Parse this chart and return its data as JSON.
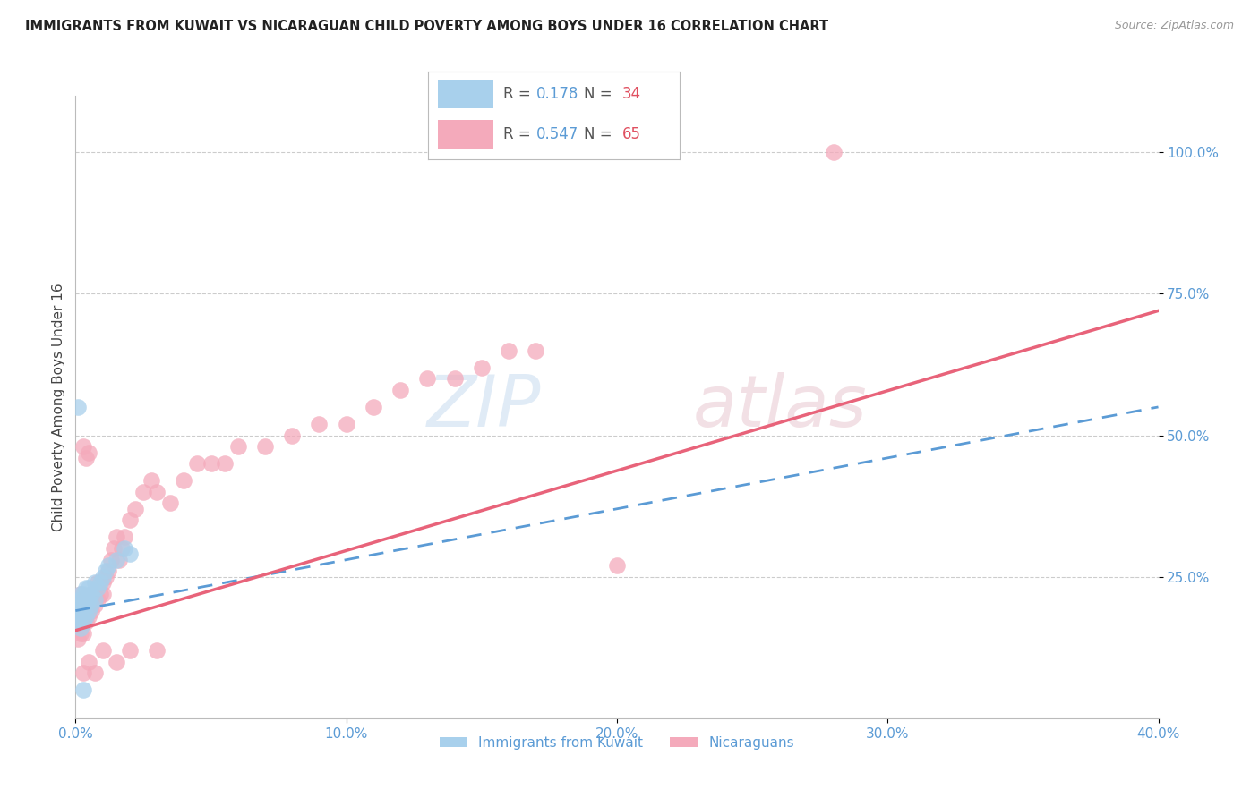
{
  "title": "IMMIGRANTS FROM KUWAIT VS NICARAGUAN CHILD POVERTY AMONG BOYS UNDER 16 CORRELATION CHART",
  "source": "Source: ZipAtlas.com",
  "ylabel": "Child Poverty Among Boys Under 16",
  "xlim": [
    0.0,
    0.4
  ],
  "ylim": [
    0.0,
    1.1
  ],
  "yticks": [
    0.25,
    0.5,
    0.75,
    1.0
  ],
  "ytick_labels": [
    "25.0%",
    "50.0%",
    "75.0%",
    "100.0%"
  ],
  "xticks": [
    0.0,
    0.1,
    0.2,
    0.3,
    0.4
  ],
  "xtick_labels": [
    "0.0%",
    "10.0%",
    "20.0%",
    "30.0%",
    "40.0%"
  ],
  "r1": 0.178,
  "n1": 34,
  "r2": 0.547,
  "n2": 65,
  "color1": "#A8D0EC",
  "color2": "#F4AABB",
  "trendline1_color": "#5B9BD5",
  "trendline2_color": "#E8637A",
  "axis_label_color": "#5B9BD5",
  "watermark_zip": "ZIP",
  "watermark_atlas": "atlas",
  "background_color": "#FFFFFF",
  "legend_label1": "Immigrants from Kuwait",
  "legend_label2": "Nicaraguans",
  "kuwait_x": [
    0.001,
    0.001,
    0.001,
    0.001,
    0.002,
    0.002,
    0.002,
    0.002,
    0.002,
    0.003,
    0.003,
    0.003,
    0.003,
    0.004,
    0.004,
    0.004,
    0.004,
    0.005,
    0.005,
    0.005,
    0.006,
    0.006,
    0.007,
    0.007,
    0.008,
    0.009,
    0.01,
    0.011,
    0.012,
    0.015,
    0.018,
    0.02,
    0.001,
    0.003
  ],
  "kuwait_y": [
    0.17,
    0.18,
    0.19,
    0.2,
    0.16,
    0.18,
    0.2,
    0.21,
    0.22,
    0.17,
    0.19,
    0.2,
    0.22,
    0.18,
    0.2,
    0.21,
    0.23,
    0.19,
    0.21,
    0.23,
    0.2,
    0.22,
    0.21,
    0.24,
    0.23,
    0.24,
    0.25,
    0.26,
    0.27,
    0.28,
    0.3,
    0.29,
    0.55,
    0.05
  ],
  "nicaraguan_x": [
    0.001,
    0.001,
    0.001,
    0.002,
    0.002,
    0.002,
    0.002,
    0.003,
    0.003,
    0.003,
    0.003,
    0.004,
    0.004,
    0.004,
    0.005,
    0.005,
    0.005,
    0.006,
    0.006,
    0.007,
    0.007,
    0.008,
    0.008,
    0.009,
    0.01,
    0.01,
    0.011,
    0.012,
    0.013,
    0.014,
    0.015,
    0.016,
    0.017,
    0.018,
    0.02,
    0.022,
    0.025,
    0.028,
    0.03,
    0.035,
    0.04,
    0.045,
    0.05,
    0.055,
    0.06,
    0.07,
    0.08,
    0.09,
    0.1,
    0.11,
    0.12,
    0.13,
    0.14,
    0.15,
    0.16,
    0.17,
    0.003,
    0.005,
    0.007,
    0.01,
    0.015,
    0.02,
    0.03,
    0.2,
    0.28
  ],
  "nicaraguan_y": [
    0.14,
    0.17,
    0.2,
    0.15,
    0.18,
    0.2,
    0.22,
    0.15,
    0.18,
    0.21,
    0.48,
    0.17,
    0.2,
    0.46,
    0.18,
    0.2,
    0.47,
    0.19,
    0.22,
    0.2,
    0.22,
    0.21,
    0.24,
    0.22,
    0.22,
    0.24,
    0.25,
    0.26,
    0.28,
    0.3,
    0.32,
    0.28,
    0.3,
    0.32,
    0.35,
    0.37,
    0.4,
    0.42,
    0.4,
    0.38,
    0.42,
    0.45,
    0.45,
    0.45,
    0.48,
    0.48,
    0.5,
    0.52,
    0.52,
    0.55,
    0.58,
    0.6,
    0.6,
    0.62,
    0.65,
    0.65,
    0.08,
    0.1,
    0.08,
    0.12,
    0.1,
    0.12,
    0.12,
    0.27,
    1.0
  ],
  "trendline_pink_x0": 0.0,
  "trendline_pink_y0": 0.155,
  "trendline_pink_x1": 0.4,
  "trendline_pink_y1": 0.72,
  "trendline_blue_x0": 0.0,
  "trendline_blue_y0": 0.19,
  "trendline_blue_x1": 0.4,
  "trendline_blue_y1": 0.55
}
